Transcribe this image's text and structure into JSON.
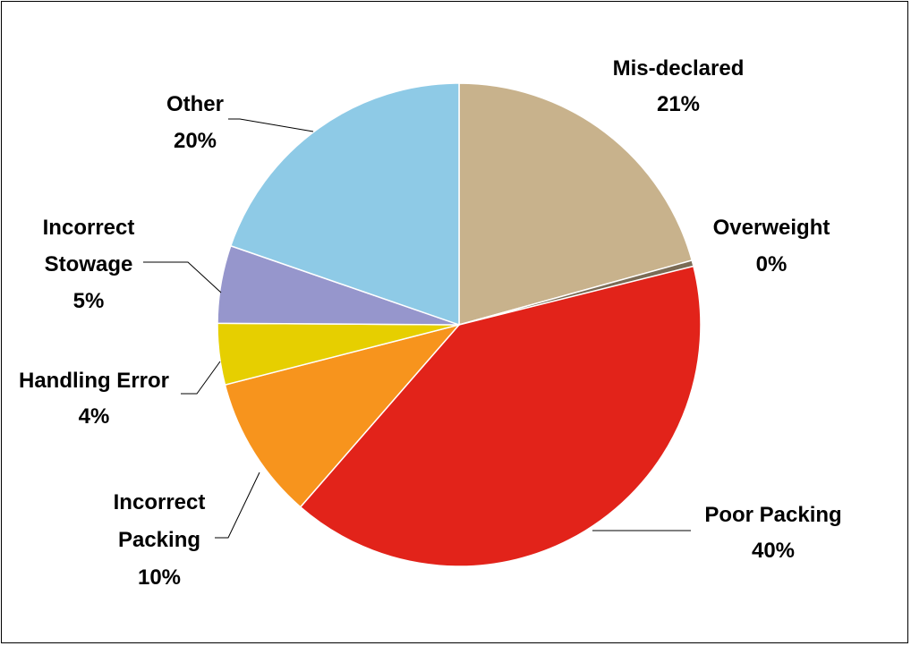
{
  "chart_data": {
    "type": "pie",
    "title": "",
    "legend": "none",
    "slices": [
      {
        "label": "Mis-declared",
        "label_lines": [
          "Mis-declared"
        ],
        "pct_label": "21%",
        "value": 20.7,
        "color": "#C8B28C"
      },
      {
        "label": "Overweight",
        "label_lines": [
          "Overweight"
        ],
        "pct_label": "0%",
        "value": 0.4,
        "color": "#7A6B55"
      },
      {
        "label": "Poor Packing",
        "label_lines": [
          "Poor Packing"
        ],
        "pct_label": "40%",
        "value": 40.3,
        "color": "#E2231A"
      },
      {
        "label": "Incorrect Packing",
        "label_lines": [
          "Incorrect",
          "Packing"
        ],
        "pct_label": "10%",
        "value": 9.6,
        "color": "#F7941D"
      },
      {
        "label": "Handling Error",
        "label_lines": [
          "Handling Error"
        ],
        "pct_label": "4%",
        "value": 4.1,
        "color": "#E6CF00"
      },
      {
        "label": "Incorrect Stowage",
        "label_lines": [
          "Incorrect",
          "Stowage"
        ],
        "pct_label": "5%",
        "value": 5.2,
        "color": "#9696CC"
      },
      {
        "label": "Other",
        "label_lines": [
          "Other"
        ],
        "pct_label": "20%",
        "value": 19.7,
        "color": "#8ECAE6"
      }
    ]
  }
}
